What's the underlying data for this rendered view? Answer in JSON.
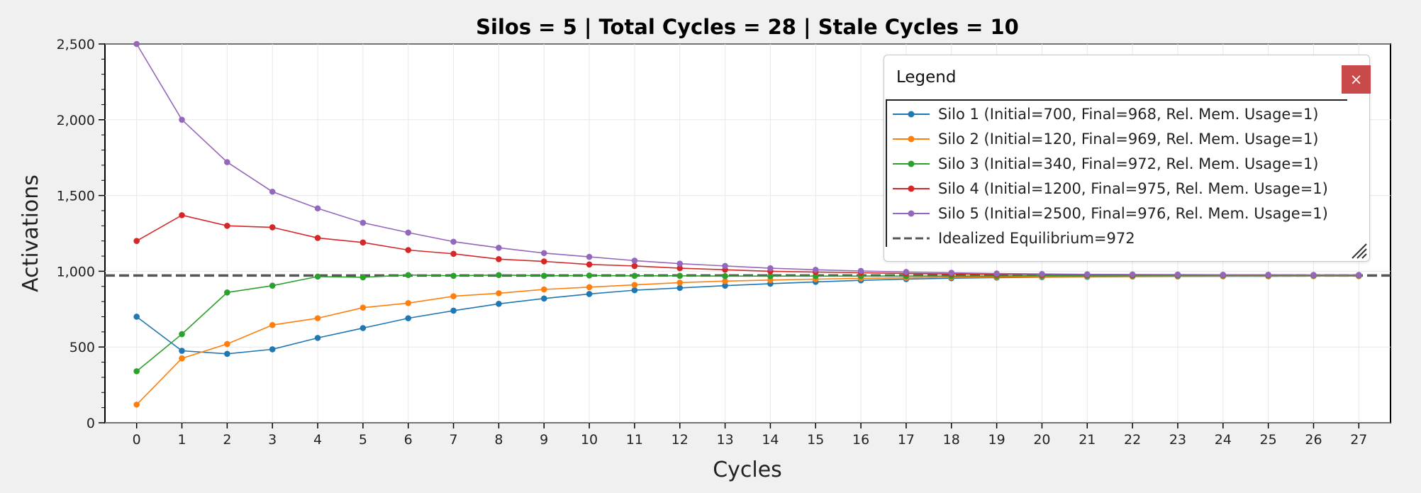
{
  "chart_data": {
    "type": "line",
    "title": "Silos = 5 | Total Cycles = 28 | Stale Cycles = 10",
    "xlabel": "Cycles",
    "ylabel": "Activations",
    "x": [
      0,
      1,
      2,
      3,
      4,
      5,
      6,
      7,
      8,
      9,
      10,
      11,
      12,
      13,
      14,
      15,
      16,
      17,
      18,
      19,
      20,
      21,
      22,
      23,
      24,
      25,
      26,
      27
    ],
    "xlim": [
      -0.7,
      27.7
    ],
    "ylim": [
      0,
      2500
    ],
    "yticks": [
      0,
      500,
      1000,
      1500,
      2000,
      2500
    ],
    "ytick_labels": [
      "0",
      "500",
      "1,000",
      "1,500",
      "2,000",
      "2,500"
    ],
    "grid": true,
    "series": [
      {
        "name": "Silo 1 (Initial=700, Final=968, Rel. Mem. Usage=1)",
        "color": "#1f77b4",
        "values": [
          700,
          475,
          455,
          485,
          560,
          625,
          690,
          740,
          785,
          820,
          850,
          875,
          890,
          905,
          918,
          930,
          940,
          948,
          954,
          958,
          961,
          963,
          965,
          966,
          967,
          967,
          968,
          968
        ]
      },
      {
        "name": "Silo 2 (Initial=120, Final=969, Rel. Mem. Usage=1)",
        "color": "#ff7f0e",
        "values": [
          120,
          425,
          520,
          645,
          690,
          760,
          790,
          835,
          855,
          880,
          895,
          910,
          925,
          935,
          942,
          948,
          953,
          957,
          960,
          962,
          964,
          965,
          966,
          967,
          968,
          968,
          969,
          969
        ]
      },
      {
        "name": "Silo 3 (Initial=340, Final=972, Rel. Mem. Usage=1)",
        "color": "#2ca02c",
        "values": [
          340,
          585,
          860,
          905,
          965,
          960,
          975,
          970,
          975,
          970,
          972,
          970,
          970,
          968,
          968,
          968,
          968,
          968,
          968,
          968,
          970,
          970,
          971,
          971,
          972,
          972,
          972,
          972
        ]
      },
      {
        "name": "Silo 4 (Initial=1200, Final=975, Rel. Mem. Usage=1)",
        "color": "#d62728",
        "values": [
          1200,
          1370,
          1300,
          1290,
          1220,
          1190,
          1140,
          1115,
          1080,
          1065,
          1045,
          1035,
          1020,
          1010,
          1000,
          995,
          990,
          985,
          982,
          980,
          978,
          977,
          976,
          976,
          975,
          975,
          975,
          975
        ]
      },
      {
        "name": "Silo 5 (Initial=2500, Final=976, Rel. Mem. Usage=1)",
        "color": "#9467bd",
        "values": [
          2500,
          2000,
          1720,
          1525,
          1415,
          1320,
          1255,
          1195,
          1155,
          1120,
          1095,
          1070,
          1050,
          1035,
          1020,
          1010,
          1002,
          995,
          990,
          985,
          982,
          980,
          979,
          978,
          977,
          977,
          976,
          976
        ]
      }
    ],
    "reference_line": {
      "name": "Idealized Equilibrium=972",
      "y": 972,
      "color": "#555555",
      "style": "dashed"
    },
    "legend": {
      "title": "Legend",
      "close_label": "×",
      "placement": "top-right"
    }
  }
}
